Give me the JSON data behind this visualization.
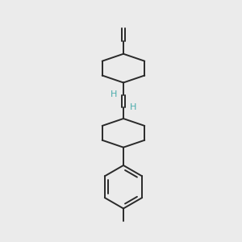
{
  "bg_color": "#ebebeb",
  "bond_color": "#2a2a2a",
  "h_label_color": "#4aacac",
  "line_width": 1.4,
  "figsize": [
    3.0,
    3.0
  ],
  "dpi": 100
}
